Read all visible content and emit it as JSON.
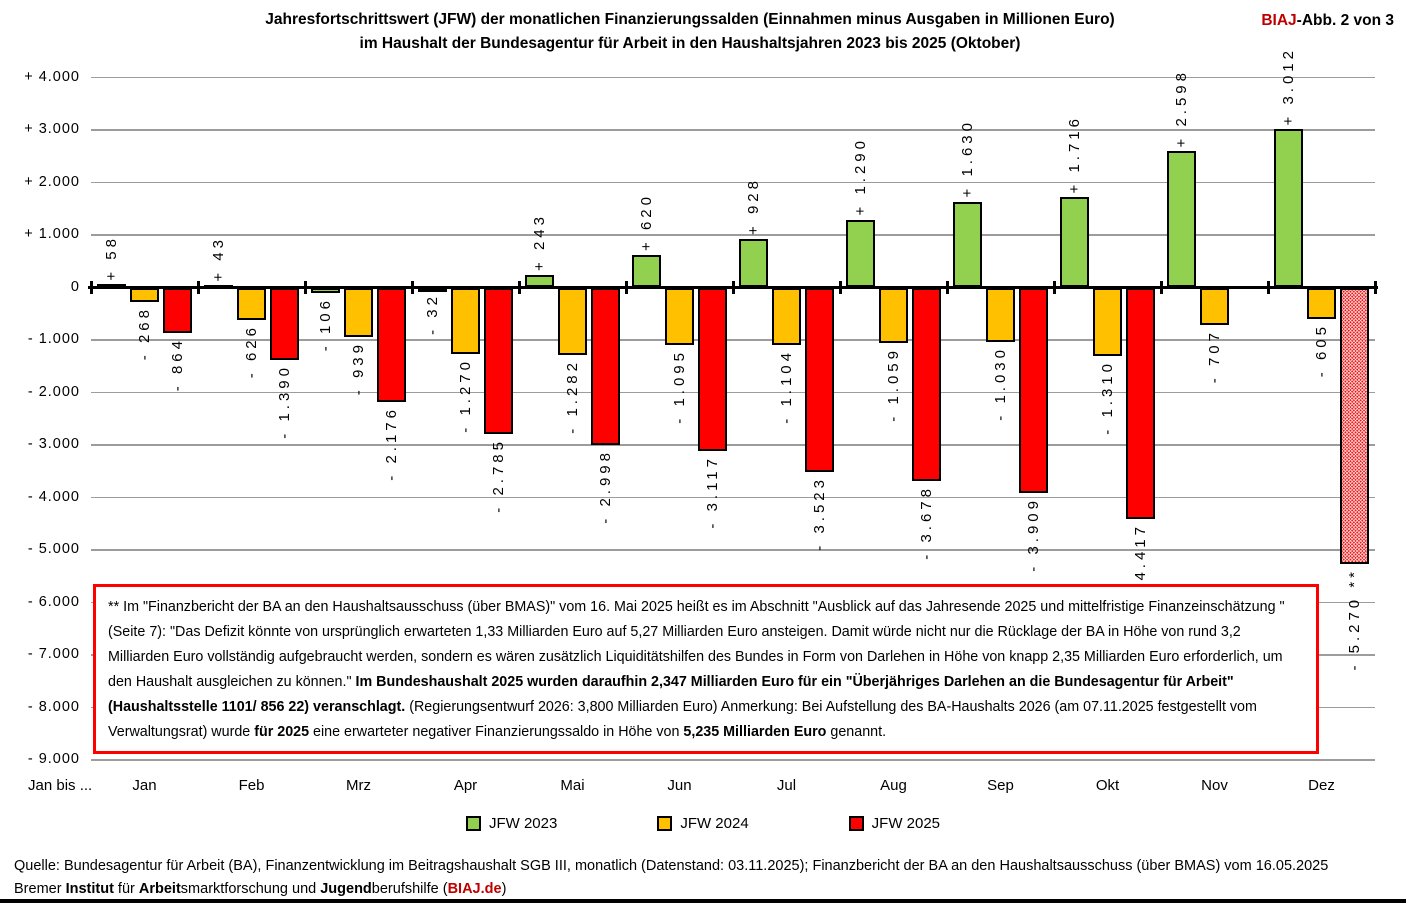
{
  "title": {
    "line1": "Jahresfortschrittswert (JFW) der monatlichen Finanzierungssalden (Einnahmen minus Ausgaben in Millionen Euro)",
    "line2": "im Haushalt der Bundesagentur für Arbeit in den Haushaltsjahren 2023 bis 2025 (Oktober)",
    "badge_red": "BIAJ",
    "badge_rest": "-Abb. 2 von 3"
  },
  "chart_data": {
    "type": "bar",
    "categories": [
      "Jan",
      "Feb",
      "Mrz",
      "Apr",
      "Mai",
      "Jun",
      "Jul",
      "Aug",
      "Sep",
      "Okt",
      "Nov",
      "Dez"
    ],
    "axis_label_left": "Jan bis ...",
    "series": [
      {
        "name": "JFW 2023",
        "color": "#92D050",
        "values": [
          58,
          43,
          -106,
          -32,
          243,
          620,
          928,
          1290,
          1630,
          1716,
          2598,
          3012
        ],
        "labels": [
          "+ 58",
          "+ 43",
          "- 106",
          "- 32",
          "+ 243",
          "+ 620",
          "+ 928",
          "+ 1.290",
          "+ 1.630",
          "+ 1.716",
          "+ 2.598",
          "+ 3.012"
        ]
      },
      {
        "name": "JFW 2024",
        "color": "#FFC000",
        "values": [
          -268,
          -626,
          -939,
          -1270,
          -1282,
          -1095,
          -1104,
          -1059,
          -1030,
          -1310,
          -707,
          -605
        ],
        "labels": [
          "- 268",
          "- 626",
          "- 939",
          "- 1.270",
          "- 1.282",
          "- 1.095",
          "- 1.104",
          "- 1.059",
          "- 1.030",
          "- 1.310",
          "- 707",
          "- 605"
        ]
      },
      {
        "name": "JFW 2025",
        "color": "#FF0000",
        "values": [
          -864,
          -1390,
          -2176,
          -2785,
          -2998,
          -3117,
          -3523,
          -3678,
          -3909,
          -4417,
          null,
          -5270
        ],
        "labels": [
          "- 864",
          "- 1.390",
          "- 2.176",
          "- 2.785",
          "- 2.998",
          "- 3.117",
          "- 3.523",
          "- 3.678",
          "- 3.909",
          "- 4.417",
          null,
          "- 5.270 **"
        ],
        "hatched_months": [
          11
        ]
      }
    ],
    "ylim": [
      -9000,
      4000
    ],
    "ytick_values": [
      4000,
      3000,
      2000,
      1000,
      0,
      -1000,
      -2000,
      -3000,
      -4000,
      -5000,
      -6000,
      -7000,
      -8000,
      -9000
    ],
    "ytick_labels": [
      "+ 4.000",
      "+ 3.000",
      "+ 2.000",
      "+ 1.000",
      "0",
      "- 1.000",
      "- 2.000",
      "- 3.000",
      "- 4.000",
      "- 5.000",
      "- 6.000",
      "- 7.000",
      "- 8.000",
      "- 9.000"
    ],
    "grid": true,
    "legend_position": "bottom"
  },
  "annotation_box": {
    "segments": [
      {
        "text": "** Im \"Finanzbericht der BA an den Haushaltsausschuss (über BMAS)\" vom 16. Mai 2025 heißt es im Abschnitt \"Ausblick auf das Jahresende 2025 und mittelfristige Finanzeinschätzung \" (Seite 7): \"Das Defizit könnte von ursprünglich erwarteten 1,33 Milliarden Euro auf 5,27 Milliarden Euro ansteigen. Damit würde nicht nur die Rücklage der BA in Höhe von rund 3,2 Milliarden Euro vollständig aufgebraucht werden, sondern es wären zusätzlich Liquiditätshilfen des Bundes in Form von Darlehen in Höhe von knapp 2,35 Milliarden Euro erforderlich, um den Haushalt ausgleichen zu können.\"  ",
        "bold": false
      },
      {
        "text": "Im Bundeshaushalt 2025 wurden daraufhin 2,347 Milliarden Euro für ein \"Überjähriges Darlehen an die Bundesagentur für Arbeit\" (Haushaltsstelle 1101/ 856 22) veranschlagt. ",
        "bold": true
      },
      {
        "text": "(Regierungsentwurf 2026: 3,800 Milliarden Euro)  Anmerkung: Bei Aufstellung des BA-Haushalts 2026 (am 07.11.2025 festgestellt vom Verwaltungsrat) wurde ",
        "bold": false
      },
      {
        "text": "für 2025",
        "bold": true
      },
      {
        "text": " eine erwarteter negativer Finanzierungssaldo in Höhe von ",
        "bold": false
      },
      {
        "text": "5,235 Milliarden Euro",
        "bold": true
      },
      {
        "text": " genannt.",
        "bold": false
      }
    ]
  },
  "footer": {
    "line1": "Quelle: Bundesagentur für Arbeit (BA), Finanzentwicklung im Beitragshaushalt SGB III, monatlich (Datenstand: 03.11.2025); Finanzbericht der BA an den Haushaltsausschuss (über BMAS) vom 16.05.2025",
    "line2_segments": [
      {
        "text": "Bremer ",
        "bold": false
      },
      {
        "text": "Institut",
        "bold": true
      },
      {
        "text": " für ",
        "bold": false
      },
      {
        "text": "Arbeit",
        "bold": true
      },
      {
        "text": "smarktforschung und ",
        "bold": false
      },
      {
        "text": "Jugend",
        "bold": true
      },
      {
        "text": "berufshilfe (",
        "bold": false
      },
      {
        "text": "BIAJ.de",
        "bold": true,
        "color": "#C00000",
        "link": true
      },
      {
        "text": ")",
        "bold": false
      }
    ]
  },
  "colors": {
    "green": "#92D050",
    "orange": "#FFC000",
    "red": "#FF0000",
    "grid_gray": "#9C9C9C",
    "accent_red": "#C00000"
  }
}
